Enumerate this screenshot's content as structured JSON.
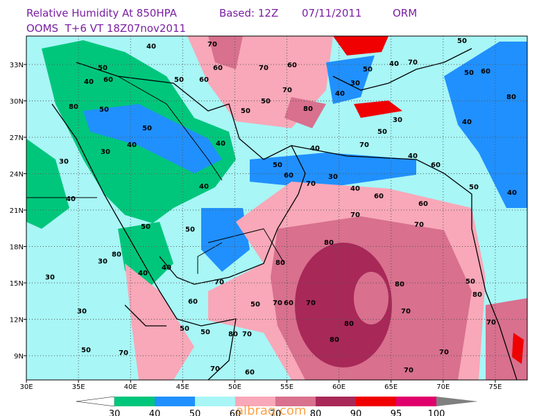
{
  "title": {
    "line1": "Relative Humidity At 850HPA",
    "based": "Based: 12Z",
    "date": "07/11/2011",
    "source": "ORM",
    "line2": "OOMS  T+6 VT 18Z07nov2011"
  },
  "map": {
    "lon_labels": [
      "30E",
      "35E",
      "40E",
      "45E",
      "50E",
      "55E",
      "60E",
      "65E",
      "70E",
      "75E"
    ],
    "lat_labels": [
      "33N",
      "30N",
      "27N",
      "24N",
      "21N",
      "18N",
      "15N",
      "12N",
      "9N"
    ],
    "contour_labels": [
      40,
      50,
      40,
      60,
      50,
      60,
      70,
      60,
      70,
      60,
      80,
      50,
      50,
      40,
      40,
      30,
      30,
      40,
      40,
      50,
      50,
      60,
      70,
      30,
      40,
      60,
      60,
      70,
      70,
      80,
      80,
      80,
      80,
      70,
      70,
      70,
      50,
      80,
      70,
      40,
      50,
      50,
      50,
      60,
      80,
      40,
      70,
      40,
      50,
      30,
      40,
      30,
      50,
      80,
      70,
      50,
      50,
      70,
      40,
      40,
      60,
      50,
      70,
      80,
      50,
      70,
      60,
      80,
      70,
      50,
      50,
      70,
      60,
      50,
      70,
      30,
      30,
      30,
      80,
      40,
      40,
      70,
      60
    ]
  },
  "colorbar": {
    "labels": [
      30,
      40,
      50,
      60,
      70,
      80,
      90,
      95,
      100
    ],
    "colors": [
      "#00c67c",
      "#2090ff",
      "#a8f6f6",
      "#f8a8b8",
      "#d8708e",
      "#a82858",
      "#f00000",
      "#e0006c"
    ]
  },
  "watermark": "albraq.com"
}
